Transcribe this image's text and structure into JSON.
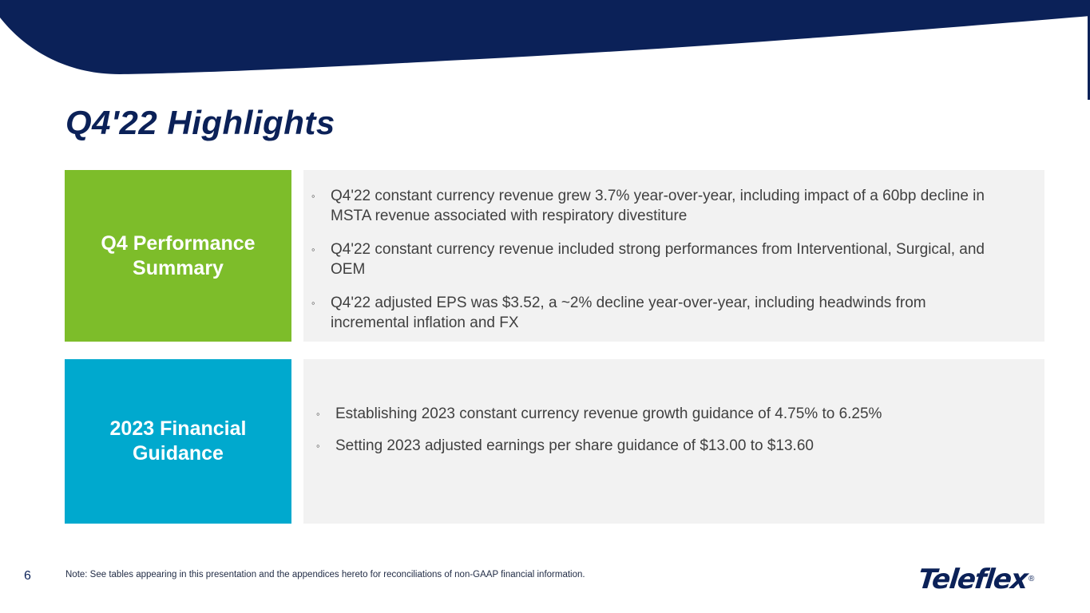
{
  "slide": {
    "title": "Q4'22 Highlights",
    "page_number": "6",
    "note": "Note: See tables appearing in this presentation and the appendices hereto for reconciliations of non-GAAP financial information.",
    "logo": {
      "text": "Teleflex",
      "registered": "®"
    }
  },
  "sections": [
    {
      "label": "Q4 Performance Summary",
      "bullet_symbol": "◦",
      "bullets": [
        "Q4'22 constant currency revenue grew 3.7% year-over-year, including impact of a 60bp decline in MSTA revenue associated with respiratory divestiture",
        "Q4'22 constant currency revenue included strong performances from Interventional, Surgical, and OEM",
        "Q4'22 adjusted EPS was $3.52, a ~2% decline year-over-year, including headwinds from incremental inflation and FX"
      ]
    },
    {
      "label": "2023 Financial Guidance",
      "bullet_symbol": "◦",
      "bullets": [
        "Establishing 2023 constant currency revenue growth guidance of 4.75% to 6.25%",
        "Setting 2023 adjusted earnings per share guidance of $13.00 to $13.60"
      ]
    }
  ],
  "colors": {
    "navy": "#0b2158",
    "green": "#7dbd2a",
    "blue": "#00a9ce",
    "panel": "#f2f2f2",
    "text": "#404040"
  },
  "icons": {
    "logo": "teleflex-logo"
  }
}
